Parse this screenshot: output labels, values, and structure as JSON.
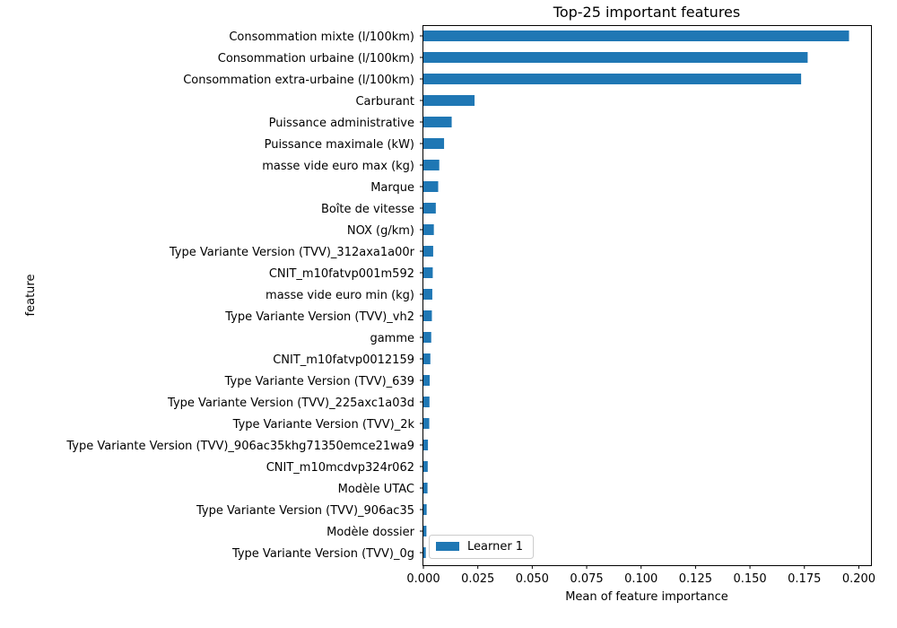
{
  "chart_data": {
    "type": "bar",
    "orientation": "horizontal",
    "title": "Top-25 important features",
    "xlabel": "Mean of feature importance",
    "ylabel": "feature",
    "xlim": [
      0.0,
      0.206
    ],
    "xticks": [
      0.0,
      0.025,
      0.05,
      0.075,
      0.1,
      0.125,
      0.15,
      0.175,
      0.2
    ],
    "xtick_labels": [
      "0.000",
      "0.025",
      "0.050",
      "0.075",
      "0.100",
      "0.125",
      "0.150",
      "0.175",
      "0.200"
    ],
    "grid": false,
    "legend_position": "lower-left",
    "categories": [
      "Consommation mixte (l/100km)",
      "Consommation urbaine (l/100km)",
      "Consommation extra-urbaine (l/100km)",
      "Carburant",
      "Puissance administrative",
      "Puissance maximale (kW)",
      "masse vide euro max (kg)",
      "Marque",
      "Boîte de vitesse",
      "NOX (g/km)",
      "Type Variante Version (TVV)_312axa1a00r",
      "CNIT_m10fatvp001m592",
      "masse vide euro min (kg)",
      "Type Variante Version (TVV)_vh2",
      "gamme",
      "CNIT_m10fatvp0012159",
      "Type Variante Version (TVV)_639",
      "Type Variante Version (TVV)_225axc1a03d",
      "Type Variante Version (TVV)_2k",
      "Type Variante Version (TVV)_906ac35khg71350emce21wa9",
      "CNIT_m10mcdvp324r062",
      "Modèle UTAC",
      "Type Variante Version (TVV)_906ac35",
      "Modèle dossier",
      "Type Variante Version (TVV)_0g"
    ],
    "series": [
      {
        "name": "Learner 1",
        "color": "#1f77b4",
        "values": [
          0.1955,
          0.1765,
          0.1735,
          0.0235,
          0.013,
          0.0095,
          0.0073,
          0.0068,
          0.0057,
          0.0048,
          0.0045,
          0.0043,
          0.0041,
          0.0039,
          0.0036,
          0.0032,
          0.0029,
          0.0028,
          0.0027,
          0.0021,
          0.002,
          0.0019,
          0.0015,
          0.0014,
          0.0011
        ]
      }
    ]
  }
}
